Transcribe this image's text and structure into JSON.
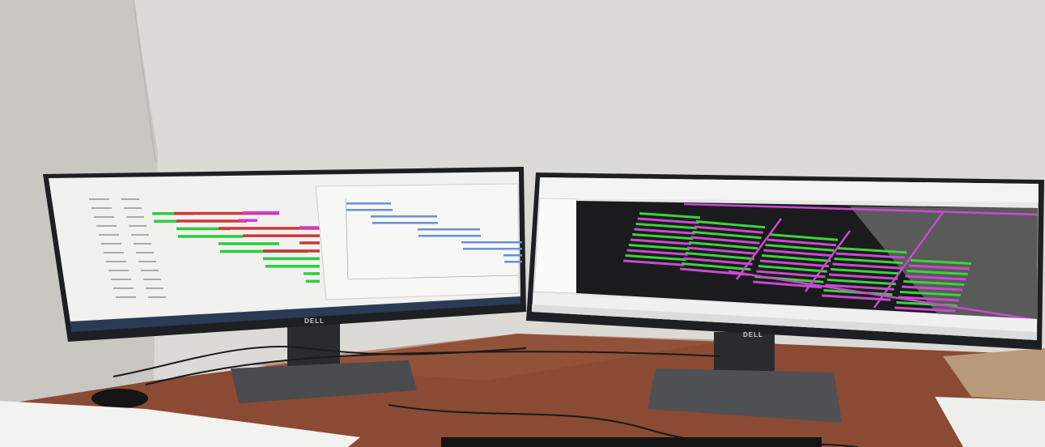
{
  "scene": {
    "left_monitor": {
      "brand_logo": "DELL",
      "bezel_color": "#1e1f22",
      "app": "gantt-schedule-view"
    },
    "right_monitor": {
      "brand_logo": "DELL",
      "bezel_color": "#1e1f22",
      "app": "3d-layout-viewer"
    },
    "colors": {
      "wall": "#dcdad6",
      "desk": "#8a4a33",
      "gantt_green": "#2ecc40",
      "gantt_red": "#d0353a",
      "gantt_magenta": "#d23ad6",
      "chart_bar_blue": "#6b8fd6",
      "viewer_green": "#3bd43b",
      "viewer_magenta": "#c84bd0",
      "viewer_background": "#1b1b1d"
    }
  }
}
